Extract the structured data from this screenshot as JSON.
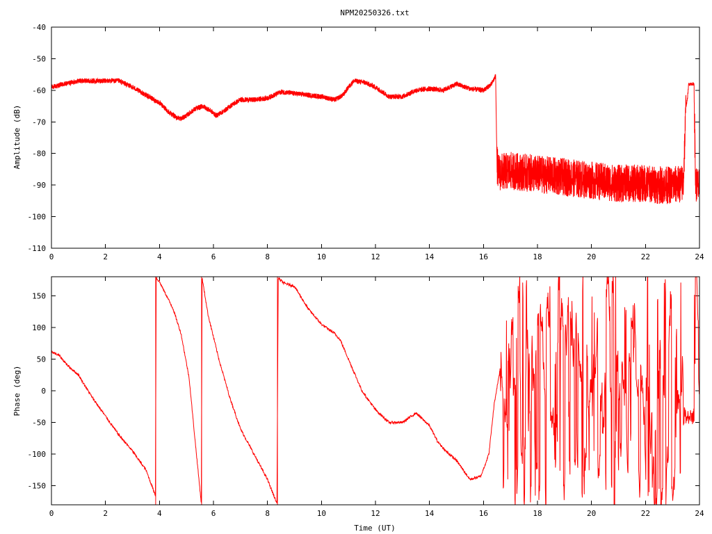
{
  "title": "NPM20250326.txt",
  "colors": {
    "trace": "#ff0000",
    "frame": "#000000",
    "background": "#ffffff"
  },
  "chart_data": [
    {
      "type": "line",
      "title": "NPM20250326.txt",
      "xlabel": "",
      "ylabel": "Amplitude (dB)",
      "xlim": [
        0,
        24
      ],
      "ylim": [
        -110,
        -40
      ],
      "xticks": [
        "0",
        "2",
        "4",
        "6",
        "8",
        "10",
        "12",
        "14",
        "16",
        "18",
        "20",
        "22",
        "24"
      ],
      "yticks": [
        "-40",
        "-50",
        "-60",
        "-70",
        "-80",
        "-90",
        "-100",
        "-110"
      ],
      "grid": false,
      "legend": "none",
      "series": [
        {
          "x": [
            0,
            0.5,
            1.0,
            1.5,
            2.0,
            2.5,
            3.0,
            3.5,
            4.0,
            4.3,
            4.6,
            4.8,
            5.0,
            5.3,
            5.6,
            5.9,
            6.1,
            6.4,
            6.7,
            7.0,
            7.5,
            8.0,
            8.5,
            9.0,
            9.5,
            10.0,
            10.5,
            10.8,
            11.0,
            11.2,
            11.6,
            12.0,
            12.5,
            13.0,
            13.5,
            14.0,
            14.5,
            15.0,
            15.5,
            16.0,
            16.3,
            16.45,
            16.5,
            16.55,
            17.0,
            17.5,
            18.0,
            18.5,
            19.0,
            19.5,
            20.0,
            20.5,
            21.0,
            21.5,
            22.0,
            22.5,
            23.0,
            23.4,
            23.5,
            23.55,
            23.6,
            23.8,
            23.85,
            23.9,
            24.0
          ],
          "y": [
            -59,
            -58,
            -57,
            -57,
            -57,
            -57,
            -59,
            -61.5,
            -64,
            -66.5,
            -68.5,
            -69,
            -68,
            -66,
            -65,
            -66.5,
            -68,
            -66.5,
            -64.5,
            -63,
            -63,
            -62.5,
            -60.5,
            -61,
            -61.5,
            -62,
            -63,
            -61.5,
            -59,
            -57,
            -57.5,
            -59,
            -62,
            -62,
            -60,
            -59.5,
            -60,
            -58,
            -59.5,
            -60,
            -58,
            -55.5,
            -83,
            -86,
            -85.5,
            -86,
            -86.5,
            -87,
            -87.5,
            -88,
            -88.5,
            -89,
            -89.5,
            -89.5,
            -89.5,
            -90,
            -90,
            -89.5,
            -65,
            -63,
            -58,
            -58,
            -89,
            -90,
            -91
          ]
        }
      ]
    },
    {
      "type": "line",
      "title": "",
      "xlabel": "Time (UT)",
      "ylabel": "Phase (deg)",
      "xlim": [
        0,
        24
      ],
      "ylim": [
        -180,
        180
      ],
      "xticks": [
        "0",
        "2",
        "4",
        "6",
        "8",
        "10",
        "12",
        "14",
        "16",
        "18",
        "20",
        "22",
        "24"
      ],
      "yticks": [
        "150",
        "100",
        "50",
        "0",
        "-50",
        "-100",
        "-150"
      ],
      "grid": false,
      "legend": "none",
      "series": [
        {
          "x": [
            0,
            0.3,
            0.6,
            1.0,
            1.5,
            2.0,
            2.5,
            3.0,
            3.5,
            3.85,
            3.88,
            4.0,
            4.5,
            4.8,
            5.1,
            5.3,
            5.55,
            5.58,
            5.8,
            6.2,
            6.6,
            7.0,
            7.5,
            8.0,
            8.35,
            8.4,
            8.6,
            9.0,
            9.5,
            10.0,
            10.5,
            10.7,
            11.0,
            11.5,
            12.0,
            12.5,
            13.0,
            13.5,
            14.0,
            14.3,
            14.6,
            15.0,
            15.5,
            15.9,
            16.2,
            16.4,
            16.6
          ],
          "y": [
            62,
            55,
            40,
            25,
            -10,
            -40,
            -70,
            -95,
            -125,
            -165,
            178,
            172,
            130,
            90,
            20,
            -70,
            -178,
            178,
            120,
            50,
            -10,
            -60,
            -100,
            -140,
            -178,
            178,
            170,
            165,
            130,
            105,
            90,
            80,
            50,
            0,
            -30,
            -50,
            -50,
            -35,
            -55,
            -80,
            -95,
            -110,
            -140,
            -135,
            -100,
            -20,
            30
          ]
        }
      ],
      "annotations": [
        "noisy phase from 16.6 to 24 UT spanning -180 to 180"
      ]
    }
  ]
}
